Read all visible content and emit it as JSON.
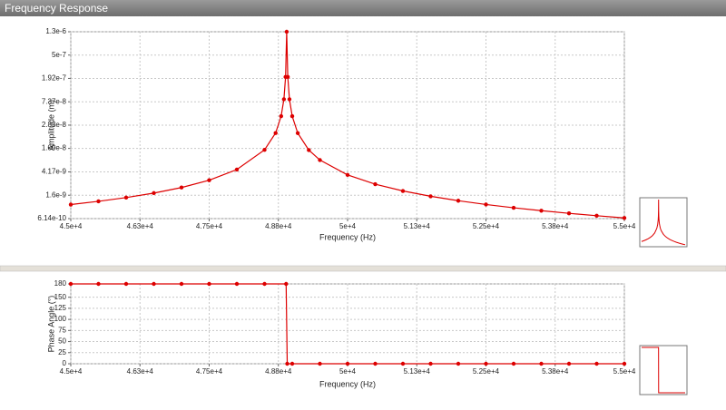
{
  "window": {
    "title": "Frequency Response"
  },
  "chart_data": [
    {
      "type": "line",
      "yscale": "log",
      "grid": true,
      "color": "#dd0000",
      "xlabel": "Frequency (Hz)",
      "ylabel": "Amplitude (m)",
      "x": [
        45000,
        45500,
        46000,
        46500,
        47000,
        47500,
        48000,
        48500,
        48700,
        48800,
        48850,
        48880,
        48900,
        48920,
        48950,
        49000,
        49100,
        49300,
        49500,
        50000,
        50500,
        51000,
        51500,
        52000,
        52500,
        53000,
        53500,
        54000,
        54500,
        55000
      ],
      "values": [
        1.092e-09,
        1.246e-09,
        1.453e-09,
        1.747e-09,
        2.195e-09,
        2.964e-09,
        4.587e-09,
        1.027e-08,
        2.049e-08,
        4.094e-08,
        8.18e-08,
        2.04e-07,
        1.3e-06,
        2.04e-07,
        8.18e-08,
        4.086e-08,
        2.041e-08,
        1.018e-08,
        6.775e-09,
        3.677e-09,
        2.515e-09,
        1.907e-09,
        1.532e-09,
        1.279e-09,
        1.096e-09,
        9.57e-10,
        8.49e-10,
        7.62e-10,
        6.91e-10,
        6.31e-10
      ],
      "xlim": [
        45000,
        55000
      ],
      "xticks": [
        {
          "value": 45000,
          "label": "4.5e+4"
        },
        {
          "value": 46250,
          "label": "4.63e+4"
        },
        {
          "value": 47500,
          "label": "4.75e+4"
        },
        {
          "value": 48750,
          "label": "4.88e+4"
        },
        {
          "value": 50000,
          "label": "5e+4"
        },
        {
          "value": 51250,
          "label": "5.13e+4"
        },
        {
          "value": 52500,
          "label": "5.25e+4"
        },
        {
          "value": 53750,
          "label": "5.38e+4"
        },
        {
          "value": 55000,
          "label": "5.5e+4"
        }
      ],
      "ylim": [
        6.14e-10,
        1.3e-06
      ],
      "yticks": [
        6.14e-10,
        1.6e-09,
        4.17e-09,
        1.09e-08,
        2.83e-08,
        7.37e-08,
        1.92e-07,
        5e-07,
        {
          "value": 1.3e-06,
          "label": "1.3e-6"
        }
      ]
    },
    {
      "type": "line",
      "grid": true,
      "color": "#dd0000",
      "xlabel": "Frequency (Hz)",
      "ylabel": "Phase Angle (°)",
      "x": [
        45000,
        45500,
        46000,
        46500,
        47000,
        47500,
        48000,
        48500,
        48890,
        48910,
        49000,
        49500,
        50000,
        50500,
        51000,
        51500,
        52000,
        52500,
        53000,
        53500,
        54000,
        54500,
        55000
      ],
      "values": [
        180,
        180,
        180,
        180,
        180,
        180,
        180,
        180,
        180,
        0,
        0,
        0,
        0,
        0,
        0,
        0,
        0,
        0,
        0,
        0,
        0,
        0,
        0
      ],
      "xlim": [
        45000,
        55000
      ],
      "xticks": [
        {
          "value": 45000,
          "label": "4.5e+4"
        },
        {
          "value": 46250,
          "label": "4.63e+4"
        },
        {
          "value": 47500,
          "label": "4.75e+4"
        },
        {
          "value": 48750,
          "label": "4.88e+4"
        },
        {
          "value": 50000,
          "label": "5e+4"
        },
        {
          "value": 51250,
          "label": "5.13e+4"
        },
        {
          "value": 52500,
          "label": "5.25e+4"
        },
        {
          "value": 53750,
          "label": "5.38e+4"
        },
        {
          "value": 55000,
          "label": "5.5e+4"
        }
      ],
      "ylim": [
        0,
        180
      ],
      "yticks": [
        0,
        25,
        50,
        75,
        100,
        125,
        150,
        180
      ]
    }
  ]
}
